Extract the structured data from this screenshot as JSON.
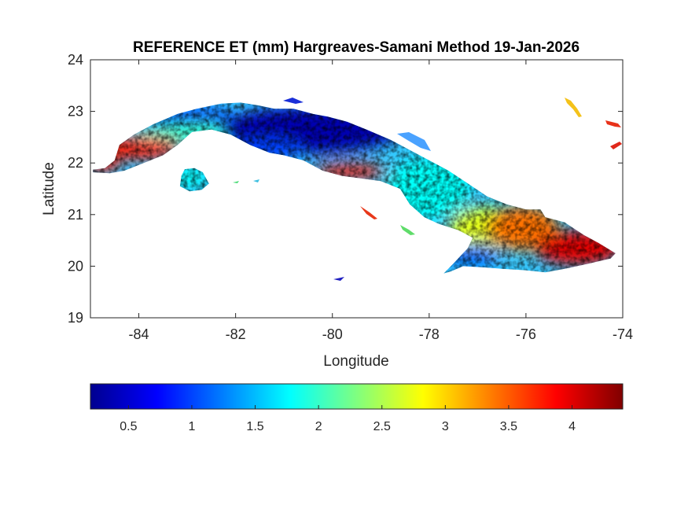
{
  "chart_data": {
    "type": "heatmap",
    "title": "REFERENCE ET (mm) Hargreaves-Samani Method  19-Jan-2026",
    "xlabel": "Longitude",
    "ylabel": "Latitude",
    "xlim": [
      -85,
      -74
    ],
    "ylim": [
      19,
      24
    ],
    "xticks": [
      -84,
      -82,
      -80,
      -78,
      -76,
      -74
    ],
    "xtick_labels": [
      "-84",
      "-82",
      "-80",
      "-78",
      "-76",
      "-74"
    ],
    "yticks": [
      19,
      20,
      21,
      22,
      23,
      24
    ],
    "ytick_labels": [
      "19",
      "20",
      "21",
      "22",
      "23",
      "24"
    ],
    "grid": false,
    "colorbar": {
      "orientation": "horizontal",
      "placement": "bottom",
      "colormap": "jet",
      "range": [
        0.2,
        4.4
      ],
      "ticks": [
        0.5,
        1,
        1.5,
        2,
        2.5,
        3,
        3.5,
        4
      ],
      "tick_labels": [
        "0.5",
        "1",
        "1.5",
        "2",
        "2.5",
        "3",
        "3.5",
        "4"
      ]
    },
    "islands": [
      {
        "name": "cuba-main",
        "outline_lonlat": [
          [
            -84.95,
            21.87
          ],
          [
            -84.7,
            21.9
          ],
          [
            -84.5,
            22.05
          ],
          [
            -84.4,
            22.35
          ],
          [
            -84.1,
            22.55
          ],
          [
            -83.7,
            22.75
          ],
          [
            -83.2,
            22.95
          ],
          [
            -82.8,
            23.05
          ],
          [
            -82.3,
            23.15
          ],
          [
            -81.9,
            23.17
          ],
          [
            -81.55,
            23.12
          ],
          [
            -81.2,
            23.05
          ],
          [
            -80.8,
            23.05
          ],
          [
            -80.4,
            22.95
          ],
          [
            -80.1,
            22.9
          ],
          [
            -79.7,
            22.8
          ],
          [
            -79.3,
            22.65
          ],
          [
            -78.8,
            22.45
          ],
          [
            -78.4,
            22.25
          ],
          [
            -78.0,
            22.05
          ],
          [
            -77.6,
            21.85
          ],
          [
            -77.2,
            21.6
          ],
          [
            -76.8,
            21.35
          ],
          [
            -76.4,
            21.2
          ],
          [
            -76.0,
            21.1
          ],
          [
            -75.7,
            21.1
          ],
          [
            -75.6,
            20.95
          ],
          [
            -75.2,
            20.85
          ],
          [
            -74.8,
            20.6
          ],
          [
            -74.5,
            20.45
          ],
          [
            -74.15,
            20.25
          ],
          [
            -74.25,
            20.15
          ],
          [
            -74.7,
            20.05
          ],
          [
            -75.2,
            19.95
          ],
          [
            -75.6,
            19.88
          ],
          [
            -76.0,
            19.92
          ],
          [
            -76.5,
            19.95
          ],
          [
            -76.9,
            19.98
          ],
          [
            -77.3,
            20.0
          ],
          [
            -77.55,
            19.9
          ],
          [
            -77.7,
            19.86
          ],
          [
            -77.5,
            20.05
          ],
          [
            -77.2,
            20.35
          ],
          [
            -77.1,
            20.55
          ],
          [
            -77.4,
            20.7
          ],
          [
            -77.8,
            20.82
          ],
          [
            -78.1,
            20.95
          ],
          [
            -78.4,
            21.2
          ],
          [
            -78.6,
            21.5
          ],
          [
            -79.0,
            21.65
          ],
          [
            -79.4,
            21.7
          ],
          [
            -79.8,
            21.75
          ],
          [
            -80.2,
            21.85
          ],
          [
            -80.6,
            22.05
          ],
          [
            -81.0,
            22.15
          ],
          [
            -81.3,
            22.2
          ],
          [
            -81.7,
            22.35
          ],
          [
            -82.1,
            22.55
          ],
          [
            -82.5,
            22.65
          ],
          [
            -82.9,
            22.6
          ],
          [
            -83.2,
            22.35
          ],
          [
            -83.5,
            22.15
          ],
          [
            -83.9,
            22.0
          ],
          [
            -84.3,
            21.85
          ],
          [
            -84.6,
            21.8
          ],
          [
            -84.95,
            21.82
          ]
        ]
      },
      {
        "name": "isla-de-la-juventud",
        "outline_lonlat": [
          [
            -83.05,
            21.88
          ],
          [
            -82.85,
            21.9
          ],
          [
            -82.68,
            21.82
          ],
          [
            -82.55,
            21.6
          ],
          [
            -82.7,
            21.48
          ],
          [
            -82.95,
            21.45
          ],
          [
            -83.15,
            21.55
          ],
          [
            -83.12,
            21.75
          ]
        ]
      }
    ],
    "color_zones": [
      {
        "name": "western-red-coast",
        "value": 3.8
      },
      {
        "name": "west-cyan-band",
        "value": 2.0
      },
      {
        "name": "west-blue-north",
        "value": 1.0
      },
      {
        "name": "central-deep-blue",
        "value": 0.4
      },
      {
        "name": "central-blue",
        "value": 1.0
      },
      {
        "name": "central-south-red",
        "value": 3.8
      },
      {
        "name": "central-cyan",
        "value": 1.8
      },
      {
        "name": "eastern-green-yellow",
        "value": 2.7
      },
      {
        "name": "eastern-orange",
        "value": 3.4
      },
      {
        "name": "eastern-red",
        "value": 4.0
      },
      {
        "name": "granma-blue",
        "value": 1.2
      }
    ]
  }
}
